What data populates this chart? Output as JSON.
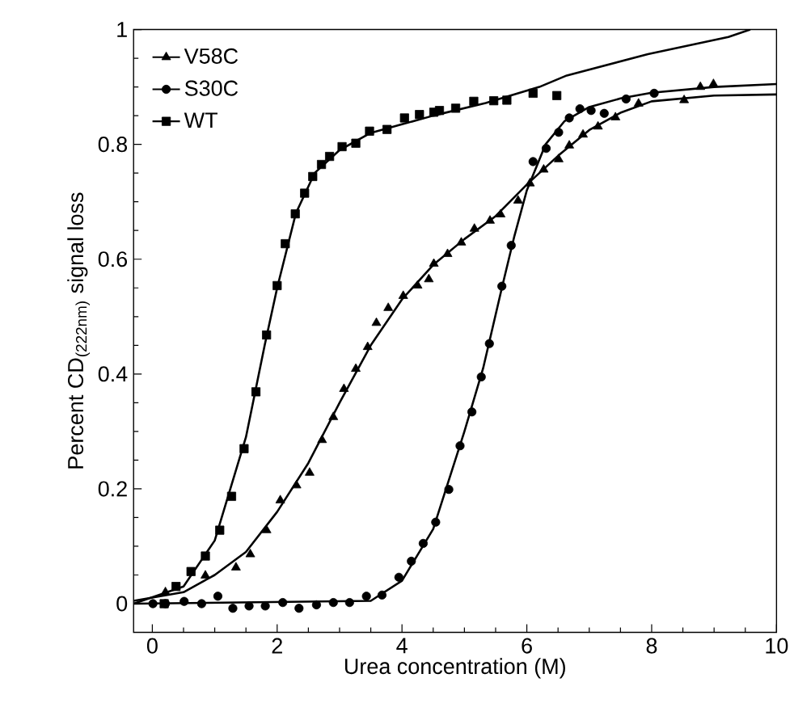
{
  "chart_data": {
    "type": "scatter",
    "xlabel": "Urea concentration (M)",
    "ylabel": "Percent CD$_{(222nm)}$ signal loss",
    "xlim": [
      -0.3,
      10
    ],
    "ylim": [
      -0.05,
      1
    ],
    "xticks": [
      0,
      2,
      4,
      6,
      8,
      10
    ],
    "yticks": [
      0,
      0.2,
      0.4,
      0.6,
      0.8,
      1
    ],
    "legend": "top left",
    "grid": false,
    "series": [
      {
        "name": "V58C",
        "color": "#000000",
        "marker": "triangle",
        "x": [
          0.21,
          0.49,
          0.85,
          1.34,
          1.57,
          1.83,
          2.05,
          2.31,
          2.52,
          2.72,
          2.9,
          3.07,
          3.26,
          3.45,
          3.59,
          3.78,
          4.02,
          4.25,
          4.43,
          4.51,
          4.73,
          4.95,
          5.16,
          5.41,
          5.58,
          5.86,
          6.05,
          6.27,
          6.51,
          6.68,
          6.9,
          7.14,
          7.42,
          7.79,
          8.52,
          8.78,
          8.99
        ],
        "values": [
          0.02,
          null,
          0.049,
          0.063,
          0.086,
          0.128,
          0.18,
          0.206,
          0.228,
          0.285,
          0.325,
          0.374,
          0.409,
          0.447,
          0.489,
          0.515,
          0.536,
          0.554,
          0.565,
          0.592,
          0.609,
          0.629,
          0.653,
          0.667,
          0.678,
          0.702,
          0.732,
          0.756,
          0.774,
          0.798,
          0.817,
          0.831,
          0.847,
          0.871,
          0.877,
          0.9,
          0.905
        ]
      },
      {
        "name": "S30C",
        "color": "#000000",
        "marker": "circle",
        "x": [
          0.01,
          0.21,
          0.51,
          0.79,
          1.05,
          1.29,
          1.55,
          1.81,
          2.09,
          2.35,
          2.63,
          2.9,
          3.16,
          3.43,
          3.68,
          3.95,
          4.15,
          4.34,
          4.54,
          4.75,
          4.93,
          5.12,
          5.27,
          5.4,
          5.6,
          5.75,
          6.1,
          6.31,
          6.51,
          6.68,
          6.85,
          7.03,
          7.24,
          7.59,
          8.04
        ],
        "values": [
          0.0,
          0.0,
          0.004,
          0.0,
          0.013,
          -0.008,
          -0.004,
          -0.004,
          0.002,
          -0.008,
          -0.002,
          0.002,
          0.002,
          0.013,
          0.015,
          0.046,
          0.074,
          0.105,
          0.142,
          0.199,
          0.275,
          0.334,
          0.395,
          0.453,
          0.553,
          0.624,
          0.77,
          0.793,
          0.821,
          0.846,
          0.862,
          0.859,
          0.854,
          0.879,
          0.889
        ]
      },
      {
        "name": "WT",
        "color": "#000000",
        "marker": "square",
        "x": [
          0.19,
          0.38,
          0.62,
          0.85,
          1.08,
          1.27,
          1.47,
          1.66,
          1.83,
          2.0,
          2.13,
          2.29,
          2.44,
          2.57,
          2.71,
          2.84,
          3.04,
          3.26,
          3.48,
          3.76,
          4.04,
          4.28,
          4.51,
          4.6,
          4.86,
          5.15,
          5.47,
          5.68,
          6.1,
          6.48
        ],
        "values": [
          0.0,
          0.03,
          0.056,
          0.083,
          0.128,
          0.187,
          0.27,
          0.369,
          0.468,
          0.554,
          0.627,
          0.679,
          0.715,
          0.744,
          0.765,
          0.779,
          0.796,
          0.802,
          0.823,
          0.826,
          0.846,
          0.852,
          0.856,
          0.859,
          0.863,
          0.875,
          0.876,
          0.877,
          0.889,
          0.885
        ]
      },
      {
        "type": "line",
        "color": "#000000",
        "line_style": "solid",
        "x": [
          -0.3,
          0.5,
          1,
          1.5,
          2,
          2.5,
          3,
          3.5,
          4,
          4.5,
          5,
          5.5,
          6,
          6.5,
          7,
          7.5,
          8,
          9,
          10
        ],
        "values": [
          0.005,
          0.02,
          0.05,
          0.09,
          0.16,
          0.245,
          0.35,
          0.45,
          0.53,
          0.59,
          0.635,
          0.675,
          0.73,
          0.78,
          0.825,
          0.855,
          0.875,
          0.885,
          0.887
        ]
      },
      {
        "type": "line",
        "color": "#000000",
        "line_style": "solid",
        "x": [
          -0.3,
          3.5,
          4,
          4.5,
          5,
          5.3,
          5.6,
          5.8,
          6,
          6.3,
          6.6,
          7,
          7.5,
          8,
          9,
          10
        ],
        "values": [
          0.0,
          0.005,
          0.04,
          0.13,
          0.3,
          0.41,
          0.55,
          0.64,
          0.72,
          0.8,
          0.84,
          0.865,
          0.88,
          0.89,
          0.9,
          0.905
        ]
      },
      {
        "type": "line",
        "color": "#000000",
        "line_style": "solid",
        "x": [
          -0.3,
          0.5,
          1,
          1.5,
          1.8,
          2,
          2.3,
          2.6,
          3,
          3.5,
          4,
          4.5,
          5.34,
          6.2,
          6.64,
          7.94,
          9.23,
          9.58
        ],
        "values": [
          0.0,
          0.03,
          0.11,
          0.29,
          0.45,
          0.55,
          0.68,
          0.75,
          0.79,
          0.82,
          0.835,
          0.85,
          0.872,
          0.9,
          0.92,
          0.957,
          0.987,
          1.0
        ]
      }
    ]
  }
}
